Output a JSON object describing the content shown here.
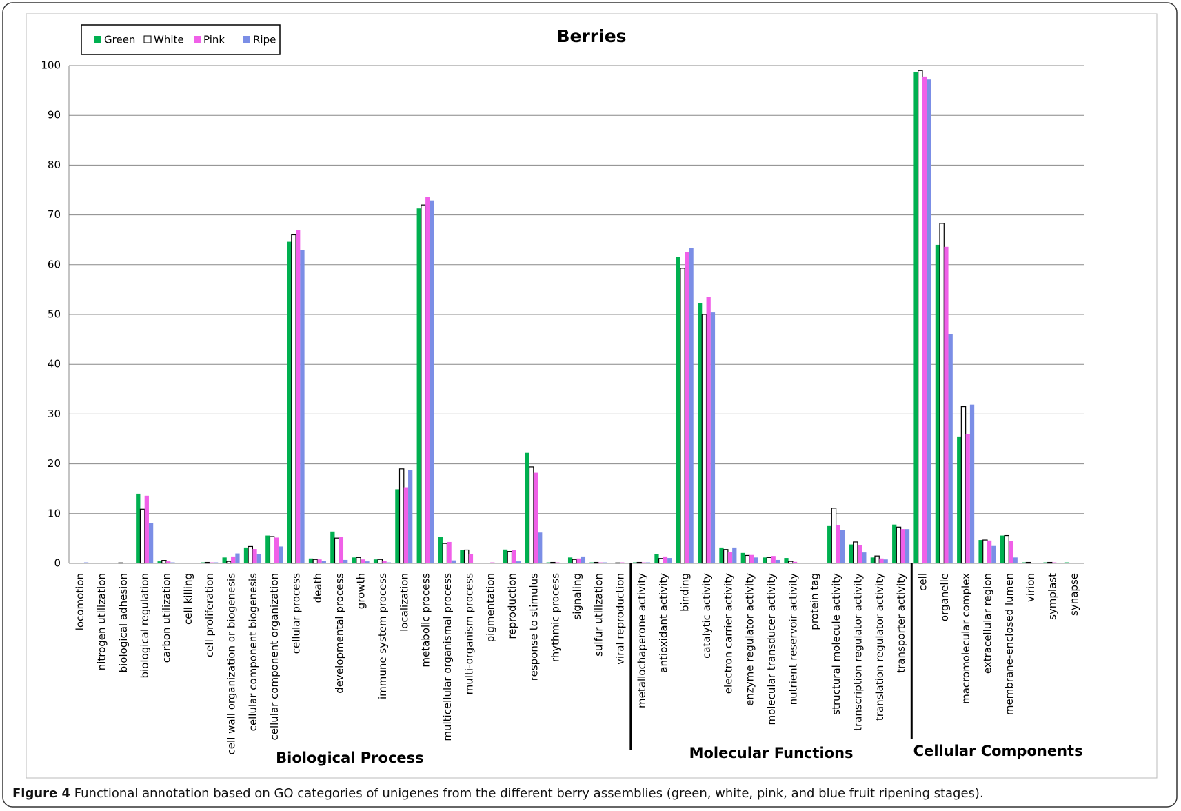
{
  "chart_data": {
    "type": "bar",
    "title": "Berries",
    "groups": [
      {
        "label": "Biological Process",
        "categories": [
          "locomotion",
          "nitrogen utilization",
          "biological adhesion",
          "biological regulation",
          "carbon utilization",
          "cell killing",
          "cell proliferation",
          "cell wall organization or biogenesis",
          "cellular component biogenesis",
          "cellular component organization",
          "cellular process",
          "death",
          "developmental process",
          "growth",
          "immune system process",
          "localization",
          "metabolic process",
          "multicellular organismal process",
          "multi-organism process",
          "pigmentation",
          "reproduction",
          "response to stimulus",
          "rhythmic process",
          "signaling",
          "sulfur utilization",
          "viral reproduction"
        ]
      },
      {
        "label": "Molecular Functions",
        "categories": [
          "metallochaperone activity",
          "antioxidant activity",
          "binding",
          "catalytic activity",
          "electron carrier activity",
          "enzyme regulator activity",
          "molecular transducer activity",
          "nutrient reservoir activity",
          "protein tag",
          "structural molecule activity",
          "transcription regulator activity",
          "translation regulator activity",
          "transporter activity"
        ]
      },
      {
        "label": "Cellular Components",
        "categories": [
          "cell",
          "organelle",
          "macromolecular complex",
          "extracellular region",
          "membrane-enclosed lumen",
          "virion",
          "symplast",
          "synapse"
        ]
      }
    ],
    "series": [
      {
        "name": "Green",
        "color": "#00b050",
        "values": [
          0,
          0,
          0,
          14,
          0.4,
          0.1,
          0.2,
          1.2,
          3.2,
          5.6,
          64.6,
          1.0,
          6.4,
          1.2,
          0.8,
          14.9,
          71.3,
          5.3,
          2.7,
          0.1,
          2.8,
          22.2,
          0.2,
          1.2,
          0.2,
          0.1,
          0.2,
          1.9,
          61.6,
          52.3,
          3.2,
          2.1,
          1.2,
          1.1,
          0.1,
          7.5,
          3.8,
          1.2,
          7.8,
          98.7,
          64,
          25.5,
          4.7,
          5.6,
          0.2,
          0.2,
          0.2
        ]
      },
      {
        "name": "White",
        "color": "#ffffff",
        "values": [
          0,
          0,
          0.1,
          10.9,
          0.6,
          0,
          0.2,
          0.4,
          3.4,
          5.4,
          66,
          0.8,
          5.1,
          1.2,
          0.8,
          19,
          72,
          4.0,
          2.7,
          0,
          2.4,
          19.4,
          0.2,
          0.8,
          0.2,
          0.1,
          0.2,
          1.0,
          59.3,
          50,
          2.8,
          1.6,
          1.2,
          0.4,
          0,
          11.1,
          4.3,
          1.5,
          7.3,
          99,
          68.3,
          31.5,
          4.7,
          5.6,
          0.2,
          0.2,
          0
        ]
      },
      {
        "name": "Pink",
        "color": "#f060e8",
        "values": [
          0,
          0.1,
          0.1,
          13.6,
          0.4,
          0.1,
          0.2,
          1.4,
          2.9,
          5.2,
          67,
          0.8,
          5.3,
          0.8,
          0.5,
          15.3,
          73.6,
          4.3,
          1.8,
          0.2,
          2.7,
          18.2,
          0.2,
          1.0,
          0.2,
          0.2,
          0.2,
          1.4,
          62.5,
          53.5,
          2.3,
          1.7,
          1.5,
          0.3,
          0,
          7.7,
          3.7,
          1.0,
          6.9,
          97.8,
          63.6,
          26,
          4.6,
          4.5,
          0.1,
          0.2,
          0
        ]
      },
      {
        "name": "Ripe",
        "color": "#7b8ee6",
        "values": [
          0.2,
          0,
          0,
          8.1,
          0.2,
          0,
          0.2,
          2.0,
          1.8,
          3.4,
          63,
          0.5,
          0.7,
          0.4,
          0.2,
          18.7,
          72.9,
          0.6,
          0.1,
          0,
          0.4,
          6.2,
          0.1,
          1.4,
          0.2,
          0.1,
          0.2,
          1.1,
          63.3,
          50.4,
          3.2,
          1.2,
          0.7,
          0.1,
          0,
          6.7,
          2.2,
          0.8,
          6.9,
          97.2,
          46.1,
          31.9,
          3.5,
          1.2,
          0,
          0,
          0
        ]
      }
    ],
    "ylim": [
      0,
      100
    ],
    "yticks": [
      0,
      10,
      20,
      30,
      40,
      50,
      60,
      70,
      80,
      90,
      100
    ],
    "grid": true,
    "legend": "top-left"
  },
  "caption": {
    "label": "Figure 4",
    "text": "Functional annotation based on GO categories of unigenes from the different berry assemblies (green, white, pink, and blue fruit ripening stages)."
  }
}
